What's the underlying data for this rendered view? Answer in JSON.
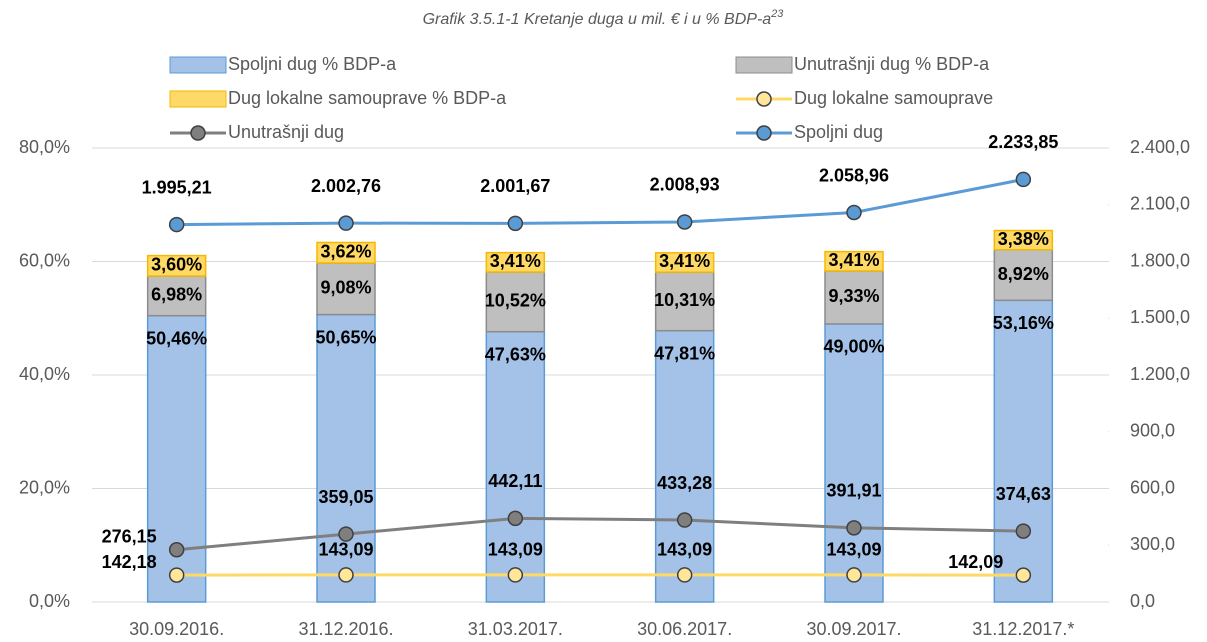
{
  "chart_data": {
    "type": "bar",
    "stacked": true,
    "title": "Grafik 3.5.1-1 Kretanje duga u mil. € i u % BDP-a",
    "title_note": "23",
    "categories": [
      "30.09.2016.",
      "31.12.2016.",
      "31.03.2017.",
      "30.06.2017.",
      "30.09.2017.",
      "31.12.2017.*"
    ],
    "series": [
      {
        "name": "Spoljni dug % BDP-a",
        "type": "bar",
        "color": "#a4c2e8",
        "edge": "#5b9bd5",
        "values": [
          50.46,
          50.65,
          47.63,
          47.81,
          49.0,
          53.16
        ],
        "value_labels": [
          "50,46%",
          "50,65%",
          "47,63%",
          "47,81%",
          "49,00%",
          "53,16%"
        ]
      },
      {
        "name": "Unutrašnji dug % BDP-a",
        "type": "bar",
        "color": "#bfbfbf",
        "edge": "#8c8c8c",
        "values": [
          6.98,
          9.08,
          10.52,
          10.31,
          9.33,
          8.92
        ],
        "value_labels": [
          "6,98%",
          "9,08%",
          "10,52%",
          "10,31%",
          "9,33%",
          "8,92%"
        ]
      },
      {
        "name": "Dug lokalne samouprave % BDP-a",
        "type": "bar",
        "color": "#ffd966",
        "edge": "#f5b800",
        "values": [
          3.6,
          3.62,
          3.41,
          3.41,
          3.41,
          3.38
        ],
        "value_labels": [
          "3,60%",
          "3,62%",
          "3,41%",
          "3,41%",
          "3,41%",
          "3,38%"
        ]
      },
      {
        "name": "Dug lokalne samouprave",
        "type": "line",
        "axis": "y2",
        "color": "#ffd966",
        "marker": "#ffe699",
        "values": [
          142.18,
          143.09,
          143.09,
          143.09,
          143.09,
          142.09
        ],
        "value_labels": [
          "142,18",
          "143,09",
          "143,09",
          "143,09",
          "143,09",
          "142,09"
        ]
      },
      {
        "name": "Unutrašnji dug",
        "type": "line",
        "axis": "y2",
        "color": "#7f7f7f",
        "marker": "#7f7f7f",
        "values": [
          276.15,
          359.05,
          442.11,
          433.28,
          391.91,
          374.63
        ],
        "value_labels": [
          "276,15",
          "359,05",
          "442,11",
          "433,28",
          "391,91",
          "374,63"
        ]
      },
      {
        "name": "Spoljni dug",
        "type": "line",
        "axis": "y2",
        "color": "#5b9bd5",
        "marker": "#5b9bd5",
        "values": [
          1995.21,
          2002.76,
          2001.67,
          2008.93,
          2058.96,
          2233.85
        ],
        "value_labels": [
          "1.995,21",
          "2.002,76",
          "2.001,67",
          "2.008,93",
          "2.058,96",
          "2.233,85"
        ]
      }
    ],
    "ylim": [
      0,
      80
    ],
    "yticks": [
      {
        "value": 0,
        "label": "0,0%"
      },
      {
        "value": 20,
        "label": "20,0%"
      },
      {
        "value": 40,
        "label": "40,0%"
      },
      {
        "value": 60,
        "label": "60,0%"
      },
      {
        "value": 80,
        "label": "80,0%"
      }
    ],
    "y2lim": [
      0,
      2400
    ],
    "y2ticks": [
      {
        "value": 0,
        "label": "0,0"
      },
      {
        "value": 300,
        "label": "300,0"
      },
      {
        "value": 600,
        "label": "600,0"
      },
      {
        "value": 900,
        "label": "900,0"
      },
      {
        "value": 1200,
        "label": "1.200,0"
      },
      {
        "value": 1500,
        "label": "1.500,0"
      },
      {
        "value": 1800,
        "label": "1.800,0"
      },
      {
        "value": 2100,
        "label": "2.100,0"
      },
      {
        "value": 2400,
        "label": "2.400,0"
      }
    ],
    "grid": true
  }
}
